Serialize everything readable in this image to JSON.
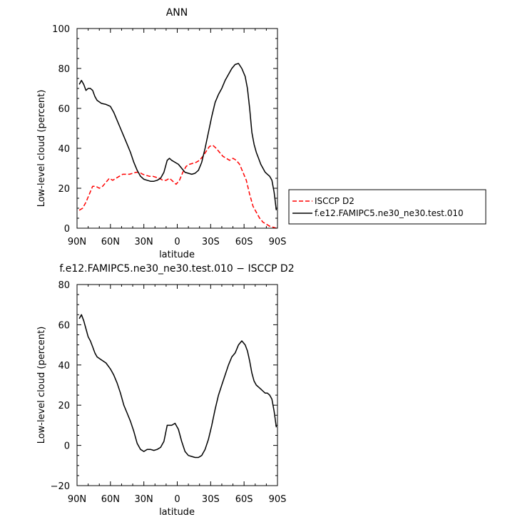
{
  "chart_data": [
    {
      "type": "line",
      "title": "ANN",
      "xlabel": "latitude",
      "ylabel": "Low-level cloud (percent)",
      "xlim": [
        90,
        -90
      ],
      "ylim": [
        0,
        100
      ],
      "x_ticks": [
        90,
        60,
        30,
        0,
        -30,
        -60,
        -90
      ],
      "x_tick_labels": [
        "90N",
        "60N",
        "30N",
        "0",
        "30S",
        "60S",
        "90S"
      ],
      "y_ticks": [
        0,
        20,
        40,
        60,
        80,
        100
      ],
      "y_tick_labels": [
        "0",
        "20",
        "40",
        "60",
        "80",
        "100"
      ],
      "legend_position": "right",
      "series": [
        {
          "name": "ISCCP D2",
          "color": "#ff0000",
          "dash": "dashed",
          "x": [
            88,
            85,
            82,
            79,
            76,
            73,
            70,
            67,
            64,
            61,
            58,
            55,
            52,
            49,
            46,
            43,
            40,
            37,
            34,
            31,
            28,
            25,
            22,
            19,
            16,
            13,
            10,
            7,
            4,
            1,
            -2,
            -5,
            -8,
            -11,
            -14,
            -17,
            -20,
            -23,
            -26,
            -29,
            -32,
            -35,
            -38,
            -41,
            -44,
            -47,
            -50,
            -53,
            -56,
            -59,
            -62,
            -65,
            -68,
            -71,
            -74,
            -77,
            -80,
            -83,
            -86,
            -89
          ],
          "y": [
            9,
            10,
            13,
            17,
            21,
            21,
            20,
            21,
            23,
            25,
            24,
            25,
            26,
            27,
            27,
            27,
            27.5,
            28,
            28,
            27,
            26.5,
            26,
            26,
            25.5,
            25,
            24,
            24,
            25,
            23.5,
            22,
            24,
            28,
            31,
            32,
            32.5,
            33,
            34,
            36,
            38.5,
            41,
            41.5,
            40,
            38,
            36,
            35,
            34,
            35,
            34,
            32,
            28,
            24,
            17,
            11,
            8,
            5,
            3,
            2,
            1,
            0.5,
            0
          ]
        },
        {
          "name": "f.e12.FAMIPC5.ne30_ne30.test.010",
          "color": "#000000",
          "dash": "solid",
          "x": [
            88,
            86,
            84,
            82,
            80,
            78,
            76,
            74,
            72,
            68,
            64,
            60,
            57,
            54,
            51,
            48,
            45,
            42,
            39,
            36,
            33,
            30,
            27,
            24,
            21,
            18,
            15,
            12,
            9,
            7,
            5,
            2,
            -1,
            -4,
            -7,
            -10,
            -13,
            -16,
            -19,
            -22,
            -25,
            -28,
            -31,
            -34,
            -37,
            -40,
            -43,
            -46,
            -49,
            -52,
            -55,
            -58,
            -61,
            -63,
            -65,
            -67,
            -69,
            -71,
            -73,
            -75,
            -77,
            -79,
            -81,
            -83,
            -85,
            -87,
            -89
          ],
          "y": [
            72,
            74,
            72,
            69,
            70,
            70,
            69,
            66,
            64,
            62.5,
            62,
            61,
            58,
            54,
            50,
            46,
            42,
            38,
            33,
            29,
            26,
            24.5,
            24,
            23.5,
            23.5,
            24,
            25,
            28,
            34,
            35,
            34,
            33,
            32,
            30,
            28,
            27.5,
            27,
            27.5,
            29,
            33,
            40,
            48,
            56,
            63,
            67,
            70,
            74,
            77,
            80,
            82,
            82.5,
            80,
            76,
            70,
            60,
            48,
            42,
            38,
            35,
            32,
            30,
            28,
            27,
            26,
            24,
            18,
            9
          ]
        }
      ]
    },
    {
      "type": "line",
      "title": "f.e12.FAMIPC5.ne30_ne30.test.010 − ISCCP D2",
      "xlabel": "latitude",
      "ylabel": "Low-level cloud (percent)",
      "xlim": [
        90,
        -90
      ],
      "ylim": [
        -20,
        80
      ],
      "x_ticks": [
        90,
        60,
        30,
        0,
        -30,
        -60,
        -90
      ],
      "x_tick_labels": [
        "90N",
        "60N",
        "30N",
        "0",
        "30S",
        "60S",
        "90S"
      ],
      "y_ticks": [
        -20,
        0,
        20,
        40,
        60,
        80
      ],
      "y_tick_labels": [
        "−20",
        "0",
        "20",
        "40",
        "60",
        "80"
      ],
      "series": [
        {
          "color": "#000000",
          "dash": "solid",
          "x": [
            88,
            86,
            84,
            82,
            80,
            78,
            76,
            74,
            72,
            68,
            64,
            60,
            57,
            54,
            51,
            48,
            45,
            42,
            39,
            36,
            33,
            30,
            27,
            24,
            21,
            18,
            15,
            12,
            9,
            7,
            5,
            2,
            -1,
            -4,
            -7,
            -10,
            -13,
            -16,
            -19,
            -22,
            -25,
            -28,
            -31,
            -34,
            -37,
            -40,
            -43,
            -46,
            -49,
            -52,
            -55,
            -58,
            -61,
            -63,
            -65,
            -67,
            -69,
            -71,
            -73,
            -75,
            -77,
            -79,
            -81,
            -83,
            -85,
            -87,
            -89
          ],
          "y": [
            63,
            65,
            62,
            58,
            54,
            52,
            49,
            46,
            44,
            42.5,
            41,
            38,
            35,
            31,
            26,
            20,
            16,
            12,
            7,
            1,
            -2,
            -3,
            -2,
            -2,
            -2.5,
            -2,
            -1,
            2,
            10,
            10,
            10,
            11,
            8,
            2,
            -3,
            -5,
            -5.5,
            -6,
            -6,
            -5,
            -2,
            3,
            10,
            18,
            25,
            30,
            35,
            40,
            44,
            46,
            50,
            52,
            50,
            47,
            42,
            36,
            32,
            30,
            29,
            28,
            27,
            26,
            26,
            25,
            23,
            17,
            9
          ]
        }
      ]
    }
  ]
}
